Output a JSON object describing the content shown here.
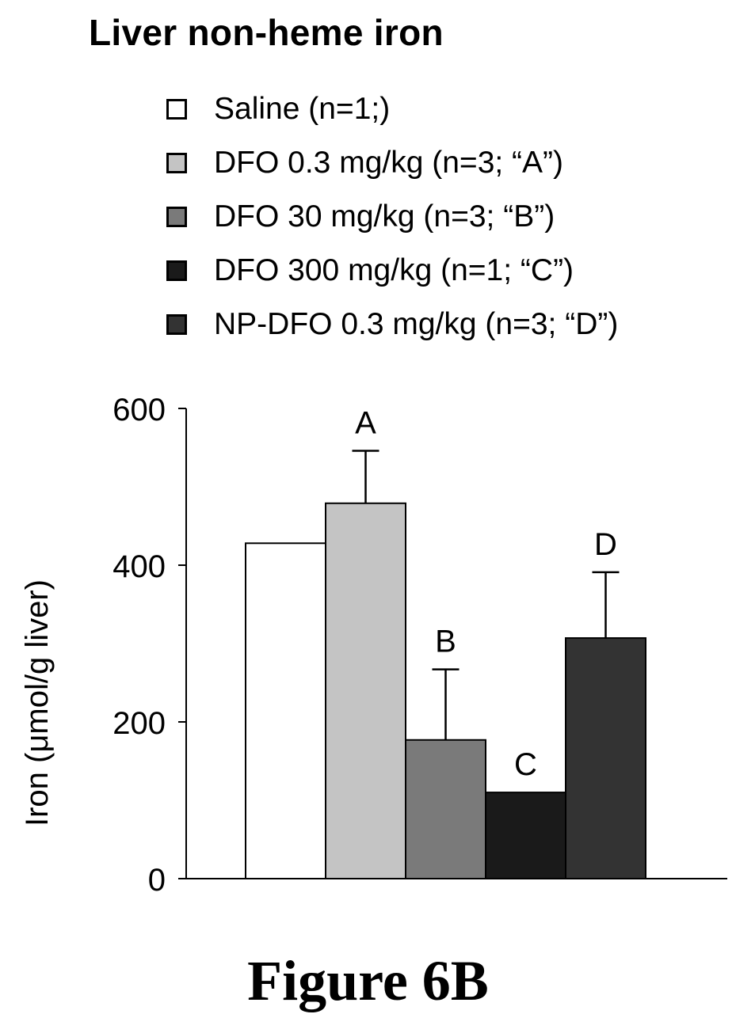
{
  "chart_data": {
    "type": "bar",
    "title": "Liver non-heme iron",
    "ylabel": "Iron (μmol/g liver)",
    "xlabel": "",
    "ylim": [
      0,
      600
    ],
    "yticks": [
      0,
      200,
      400,
      600
    ],
    "grid": false,
    "legend_position": "top",
    "categories": [
      "Saline (n=1;)",
      "DFO 0.3 mg/kg (n=3; “A”)",
      "DFO 30 mg/kg (n=3; “B”)",
      "DFO 300 mg/kg (n=1; “C”)",
      "NP-DFO 0.3 mg/kg (n=3; “D”)"
    ],
    "values": [
      428,
      479,
      177,
      110,
      307
    ],
    "error_plus": [
      0,
      67,
      90,
      0,
      84
    ],
    "bar_labels": [
      "",
      "A",
      "B",
      "C",
      "D"
    ],
    "colors": [
      "#ffffff",
      "#c4c4c4",
      "#7a7a7a",
      "#1a1a1a",
      "#333333"
    ]
  },
  "figure_caption": "Figure 6B"
}
